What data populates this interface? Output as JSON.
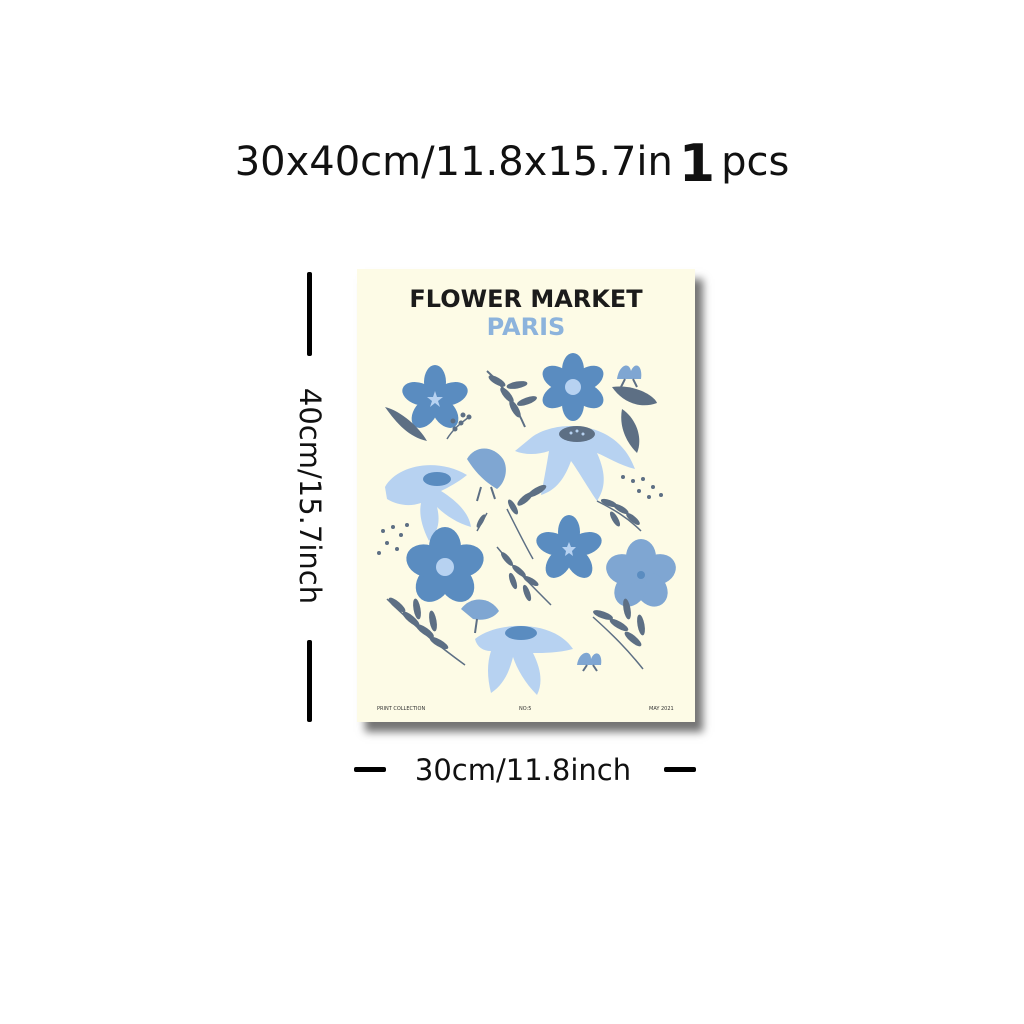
{
  "headline": {
    "size_text": "30x40cm/11.8x15.7in",
    "quantity": "1",
    "unit": "pcs"
  },
  "dimensions": {
    "height_label": "40cm/15.7inch",
    "width_label": "30cm/11.8inch"
  },
  "poster": {
    "title": "FLOWER MARKET",
    "subtitle": "PARIS",
    "footer_left": "PRINT COLLECTION",
    "footer_center": "NO:5",
    "footer_right": "MAY 2021"
  },
  "colors": {
    "poster_bg": "#fdfbe6",
    "flower_dark": "#5a8cc0",
    "flower_mid": "#7fa6d2",
    "flower_light": "#b7d2f1",
    "leaf": "#5d6f84",
    "subtitle": "#8cb3dc"
  }
}
